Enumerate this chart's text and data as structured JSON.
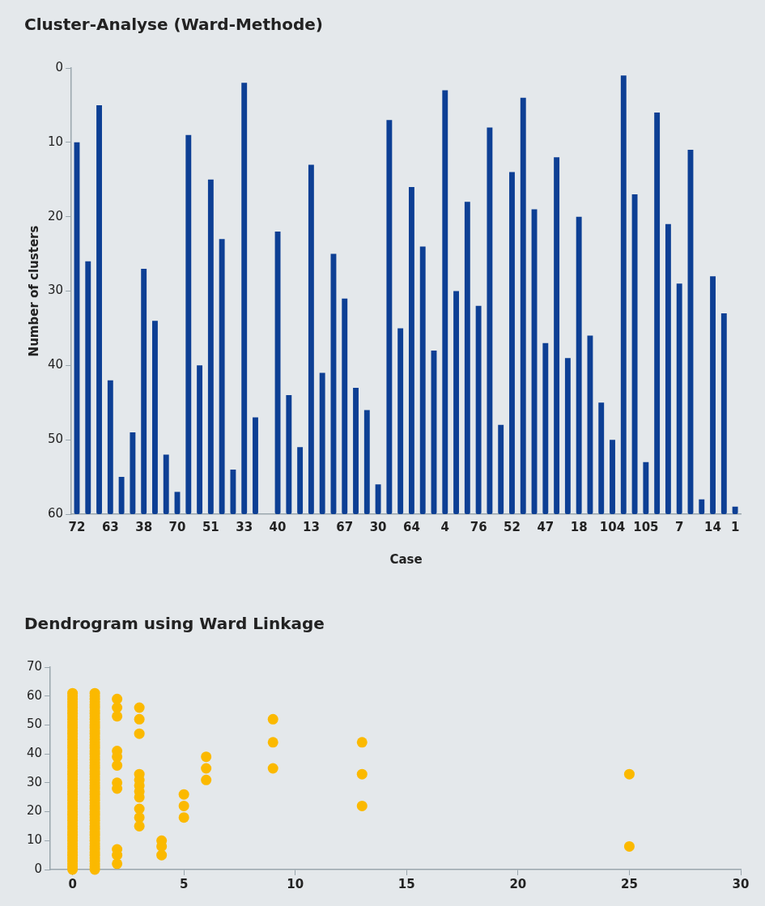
{
  "chart_data": [
    {
      "type": "bar",
      "title": "Cluster-Analyse (Ward-Methode)",
      "xlabel": "Case",
      "ylabel": "Number of clusters",
      "categories": [
        "72",
        null,
        null,
        "63",
        null,
        null,
        "38",
        null,
        null,
        "70",
        null,
        null,
        "51",
        null,
        null,
        "33",
        null,
        null,
        "40",
        null,
        null,
        "13",
        null,
        null,
        "67",
        null,
        null,
        "30",
        null,
        null,
        "64",
        null,
        null,
        "4",
        null,
        null,
        "76",
        null,
        null,
        "52",
        null,
        null,
        "47",
        null,
        null,
        "18",
        null,
        null,
        "104",
        null,
        null,
        "105",
        null,
        null,
        "7",
        null,
        null,
        "14",
        null,
        "1"
      ],
      "base": [
        60,
        60,
        60,
        60,
        60,
        60,
        60,
        60,
        60,
        60,
        60,
        60,
        60,
        60,
        60,
        60,
        60,
        null,
        60,
        60,
        60,
        60,
        60,
        60,
        60,
        60,
        60,
        60,
        60,
        60,
        60,
        60,
        60,
        60,
        60,
        60,
        60,
        60,
        60,
        60,
        60,
        60,
        60,
        60,
        60,
        60,
        60,
        60,
        60,
        60,
        60,
        60,
        60,
        60,
        60,
        60,
        60,
        60,
        60,
        60
      ],
      "values": [
        -50,
        -34,
        -55,
        -18,
        -5,
        -11,
        -33,
        -26,
        -8,
        -3,
        -51,
        -20,
        -45,
        -37,
        -6,
        -58,
        -13,
        null,
        -38,
        -16,
        -9,
        -47,
        -19,
        -35,
        -29,
        -17,
        -14,
        -4,
        -53,
        -25,
        -44,
        -36,
        -22,
        -57,
        -30,
        -42,
        -28,
        -52,
        -12,
        -46,
        -56,
        -41,
        -23,
        -48,
        -21,
        -40,
        -24,
        -15,
        -10,
        -59,
        -43,
        -7,
        -54,
        -39,
        -31,
        -49,
        -2,
        -32,
        -27,
        -1
      ],
      "color": "#0d3f94",
      "ylim": [
        60,
        0
      ],
      "yticks": [
        0,
        10,
        20,
        30,
        40,
        50,
        60
      ]
    },
    {
      "type": "scatter",
      "title": "Dendrogram using Ward Linkage",
      "marker": "circle",
      "color": "#fbb900",
      "x": [
        0,
        0,
        0,
        0,
        0,
        0,
        0,
        0,
        0,
        0,
        0,
        0,
        0,
        0,
        0,
        0,
        0,
        0,
        0,
        0,
        0,
        0,
        0,
        0,
        0,
        0,
        0,
        0,
        0,
        0,
        0,
        0,
        0,
        0,
        0,
        0,
        0,
        0,
        0,
        0,
        0,
        0,
        0,
        0,
        0,
        0,
        0,
        0,
        0,
        0,
        0,
        0,
        0,
        0,
        0,
        0,
        0,
        0,
        0,
        0,
        0,
        0,
        1,
        1,
        1,
        1,
        1,
        1,
        1,
        1,
        1,
        1,
        1,
        1,
        1,
        1,
        1,
        1,
        1,
        1,
        1,
        1,
        1,
        1,
        1,
        1,
        1,
        1,
        1,
        1,
        1,
        1,
        1,
        1,
        1,
        1,
        1,
        1,
        1,
        1,
        1,
        1,
        1,
        1,
        1,
        1,
        1,
        1,
        1,
        1,
        1,
        1,
        1,
        1,
        1,
        1,
        1,
        1,
        1,
        1,
        1,
        1,
        1,
        1,
        2,
        2,
        2,
        2,
        2,
        2,
        2,
        2,
        2,
        2,
        2,
        3,
        3,
        3,
        3,
        3,
        3,
        3,
        3,
        3,
        3,
        3,
        4,
        4,
        4,
        5,
        5,
        5,
        6,
        6,
        6,
        9,
        9,
        9,
        13,
        13,
        13,
        25,
        25
      ],
      "values": [
        0,
        1,
        2,
        3,
        4,
        5,
        6,
        7,
        8,
        9,
        10,
        11,
        12,
        13,
        14,
        15,
        16,
        17,
        18,
        19,
        20,
        21,
        22,
        23,
        24,
        25,
        26,
        27,
        28,
        29,
        30,
        31,
        32,
        33,
        34,
        35,
        36,
        37,
        38,
        39,
        40,
        41,
        42,
        43,
        44,
        45,
        46,
        47,
        48,
        49,
        50,
        51,
        52,
        53,
        54,
        55,
        56,
        57,
        58,
        59,
        60,
        61,
        0,
        1,
        2,
        3,
        4,
        5,
        6,
        7,
        8,
        9,
        10,
        11,
        12,
        13,
        14,
        15,
        16,
        17,
        18,
        19,
        20,
        21,
        22,
        23,
        24,
        25,
        26,
        27,
        28,
        29,
        30,
        31,
        32,
        33,
        34,
        35,
        36,
        37,
        38,
        39,
        40,
        41,
        42,
        43,
        44,
        45,
        46,
        47,
        48,
        49,
        50,
        51,
        52,
        53,
        54,
        55,
        56,
        57,
        58,
        59,
        60,
        61,
        59,
        56,
        53,
        41,
        39,
        36,
        30,
        28,
        7,
        5,
        2,
        56,
        52,
        47,
        33,
        31,
        29,
        27,
        25,
        21,
        18,
        15,
        10,
        8,
        5,
        26,
        22,
        18,
        39,
        35,
        31,
        52,
        44,
        35,
        44,
        33,
        22,
        33,
        8
      ],
      "xlim": [
        -1,
        30
      ],
      "xticks": [
        0,
        5,
        10,
        15,
        20,
        25,
        30
      ],
      "ylim": [
        0,
        70
      ],
      "yticks": [
        0,
        10,
        20,
        30,
        40,
        50,
        60,
        70
      ]
    }
  ]
}
